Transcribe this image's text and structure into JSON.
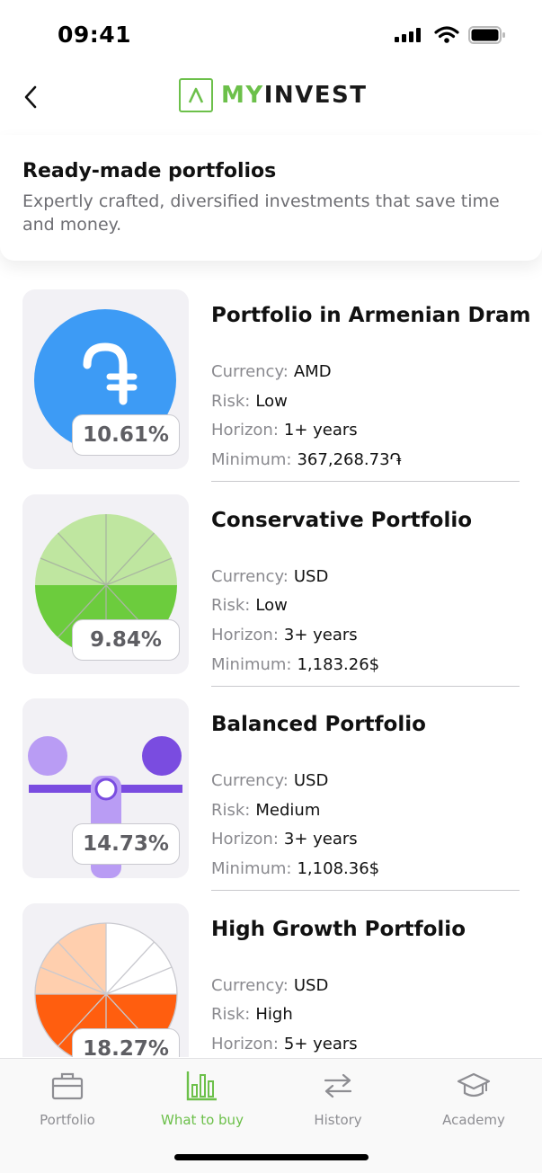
{
  "status": {
    "time": "09:41"
  },
  "app": {
    "brand_my": "MY",
    "brand_invest": "INVEST"
  },
  "header": {
    "title": "Ready-made portfolios",
    "subtitle": "Expertly crafted, diversified investments that save time and money."
  },
  "labels": {
    "currency": "Currency:",
    "risk": "Risk:",
    "horizon": "Horizon:",
    "minimum": "Minimum:"
  },
  "portfolios": [
    {
      "title": "Portfolio in Armenian Dram",
      "return": "10.61%",
      "currency": "AMD",
      "risk": "Low",
      "horizon": "1+ years",
      "minimum": "367,268.73֏"
    },
    {
      "title": "Conservative Portfolio",
      "return": "9.84%",
      "currency": "USD",
      "risk": "Low",
      "horizon": "3+ years",
      "minimum": "1,183.26$"
    },
    {
      "title": "Balanced Portfolio",
      "return": "14.73%",
      "currency": "USD",
      "risk": "Medium",
      "horizon": "3+ years",
      "minimum": "1,108.36$"
    },
    {
      "title": "High Growth Portfolio",
      "return": "18.27%",
      "currency": "USD",
      "risk": "High",
      "horizon": "5+ years",
      "minimum": ""
    }
  ],
  "tabs": [
    {
      "label": "Portfolio",
      "icon": "briefcase-icon",
      "active": false
    },
    {
      "label": "What to buy",
      "icon": "bar-chart-icon",
      "active": true
    },
    {
      "label": "History",
      "icon": "transfer-arrows-icon",
      "active": false
    },
    {
      "label": "Academy",
      "icon": "graduation-cap-icon",
      "active": false
    }
  ],
  "colors": {
    "brand_green": "#6cc04a",
    "dram_blue": "#3d9bf5",
    "conservative_light": "#bfe6a0",
    "conservative_dark": "#6ccc3d",
    "balanced_light": "#b99cf4",
    "balanced_dark": "#7a4ce0",
    "growth_light": "#ffcfae",
    "growth_dark": "#ff5e0f"
  }
}
